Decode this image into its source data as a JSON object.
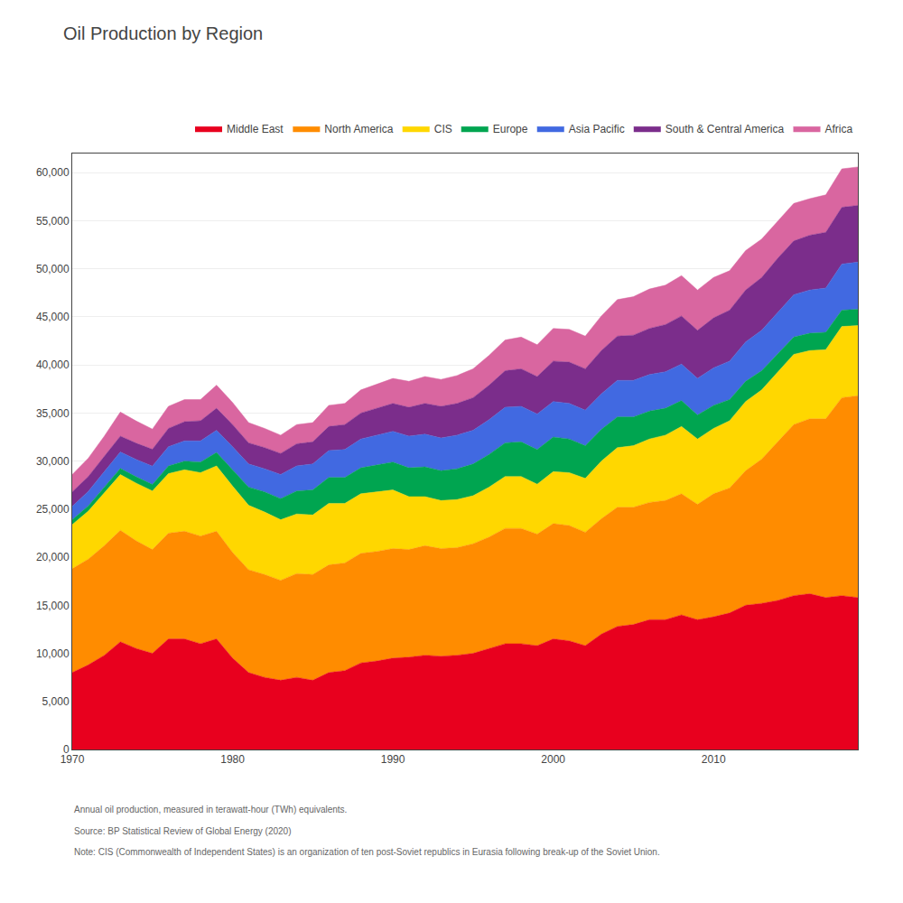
{
  "chart_data": {
    "type": "area",
    "title": "Oil Production by Region",
    "stacked": true,
    "grid": true,
    "legend": "upper right",
    "x": [
      1970,
      1971,
      1972,
      1973,
      1974,
      1975,
      1976,
      1977,
      1978,
      1979,
      1980,
      1981,
      1982,
      1983,
      1984,
      1985,
      1986,
      1987,
      1988,
      1989,
      1990,
      1991,
      1992,
      1993,
      1994,
      1995,
      1996,
      1997,
      1998,
      1999,
      2000,
      2001,
      2002,
      2003,
      2004,
      2005,
      2006,
      2007,
      2008,
      2009,
      2010,
      2011,
      2012,
      2013,
      2014,
      2015,
      2016,
      2017,
      2018,
      2019
    ],
    "series": [
      {
        "name": "Middle East",
        "color": "#e8001e",
        "values": [
          8000,
          8800,
          9800,
          11200,
          10500,
          10000,
          11500,
          11500,
          11000,
          11500,
          9500,
          8000,
          7500,
          7200,
          7500,
          7200,
          8000,
          8200,
          9000,
          9200,
          9500,
          9600,
          9800,
          9700,
          9800,
          10000,
          10500,
          11000,
          11000,
          10800,
          11500,
          11300,
          10800,
          12000,
          12800,
          13000,
          13500,
          13500,
          14000,
          13500,
          13800,
          14200,
          15000,
          15200,
          15500,
          16000,
          16200,
          15800,
          16000,
          15800
        ]
      },
      {
        "name": "North America",
        "color": "#ff8c00",
        "values": [
          10800,
          11000,
          11400,
          11600,
          11200,
          10800,
          11000,
          11200,
          11200,
          11200,
          11000,
          10700,
          10700,
          10400,
          10800,
          11000,
          11200,
          11200,
          11400,
          11400,
          11400,
          11200,
          11400,
          11200,
          11200,
          11400,
          11600,
          12000,
          12000,
          11600,
          12000,
          12000,
          11800,
          12000,
          12400,
          12200,
          12200,
          12400,
          12600,
          12000,
          12800,
          13000,
          14000,
          15000,
          16500,
          17800,
          18200,
          18600,
          20600,
          21000
        ]
      },
      {
        "name": "CIS",
        "color": "#ffd700",
        "values": [
          4600,
          5000,
          5500,
          5800,
          6000,
          6100,
          6200,
          6400,
          6600,
          6800,
          6900,
          6700,
          6500,
          6300,
          6200,
          6200,
          6400,
          6200,
          6200,
          6200,
          6100,
          5500,
          5100,
          5000,
          5000,
          5000,
          5200,
          5400,
          5400,
          5200,
          5400,
          5500,
          5600,
          6000,
          6200,
          6400,
          6600,
          6800,
          7000,
          6800,
          6800,
          7000,
          7200,
          7200,
          7300,
          7300,
          7100,
          7200,
          7400,
          7300
        ]
      },
      {
        "name": "Europe",
        "color": "#00a550",
        "values": [
          500,
          550,
          600,
          650,
          660,
          680,
          800,
          900,
          1100,
          1400,
          1700,
          1900,
          2100,
          2200,
          2400,
          2600,
          2700,
          2700,
          2700,
          2800,
          2900,
          3000,
          3100,
          3100,
          3200,
          3300,
          3400,
          3500,
          3600,
          3600,
          3600,
          3500,
          3400,
          3300,
          3200,
          3000,
          2900,
          2800,
          2700,
          2500,
          2400,
          2200,
          2100,
          2000,
          1900,
          1800,
          1800,
          1800,
          1700,
          1700
        ]
      },
      {
        "name": "Asia Pacific",
        "color": "#4169e1",
        "values": [
          1400,
          1500,
          1600,
          1700,
          1800,
          1900,
          2000,
          2100,
          2200,
          2300,
          2400,
          2400,
          2400,
          2500,
          2600,
          2700,
          2800,
          2900,
          3000,
          3100,
          3200,
          3300,
          3400,
          3400,
          3500,
          3500,
          3600,
          3700,
          3700,
          3700,
          3700,
          3700,
          3700,
          3700,
          3800,
          3800,
          3800,
          3800,
          3800,
          3800,
          3900,
          4000,
          4100,
          4200,
          4300,
          4400,
          4500,
          4600,
          4800,
          4900
        ]
      },
      {
        "name": "South & Central America",
        "color": "#7b2d8b",
        "values": [
          1500,
          1550,
          1600,
          1650,
          1700,
          1750,
          1900,
          2000,
          2100,
          2300,
          2300,
          2200,
          2200,
          2200,
          2300,
          2300,
          2500,
          2600,
          2700,
          2800,
          2900,
          3000,
          3200,
          3300,
          3300,
          3400,
          3600,
          3800,
          3900,
          3900,
          4200,
          4300,
          4300,
          4500,
          4600,
          4700,
          4800,
          4900,
          5000,
          5000,
          5200,
          5300,
          5400,
          5500,
          5600,
          5600,
          5700,
          5800,
          5900,
          5900
        ]
      },
      {
        "name": "Africa",
        "color": "#d966a0",
        "values": [
          1800,
          1900,
          2100,
          2500,
          2300,
          2100,
          2300,
          2300,
          2200,
          2400,
          2300,
          2100,
          2000,
          1900,
          2000,
          2000,
          2200,
          2200,
          2400,
          2500,
          2600,
          2700,
          2800,
          2800,
          2900,
          3000,
          3100,
          3200,
          3300,
          3300,
          3400,
          3400,
          3400,
          3600,
          3800,
          4000,
          4100,
          4100,
          4200,
          4200,
          4200,
          4100,
          4100,
          4000,
          3900,
          3900,
          3800,
          3900,
          4000,
          4000
        ]
      }
    ],
    "xlim": [
      1970,
      2019
    ],
    "xticks": [
      1970,
      1980,
      1990,
      2000,
      2010
    ],
    "ylim": [
      0,
      62000
    ],
    "yticks": [
      0,
      {
        "value": 5000,
        "label": "5,000"
      },
      {
        "value": 10000,
        "label": "10,000"
      },
      {
        "value": 15000,
        "label": "15,000"
      },
      {
        "value": 20000,
        "label": "20,000"
      },
      {
        "value": 25000,
        "label": "25,000"
      },
      {
        "value": 30000,
        "label": "30,000"
      },
      {
        "value": 35000,
        "label": "35,000"
      },
      {
        "value": 40000,
        "label": "40,000"
      },
      {
        "value": 45000,
        "label": "45,000"
      },
      {
        "value": 50000,
        "label": "50,000"
      },
      {
        "value": 55000,
        "label": "55,000"
      },
      {
        "value": 60000,
        "label": "60,000"
      }
    ],
    "annotations": [
      "Annual oil production, measured in terawatt-hour (TWh) equivalents.",
      "Source: BP Statistical Review of Global Energy (2020)",
      "Note: CIS (Commonwealth of Independent States) is an organization of ten post-Soviet republics in Eurasia following break-up of the Soviet Union."
    ]
  }
}
